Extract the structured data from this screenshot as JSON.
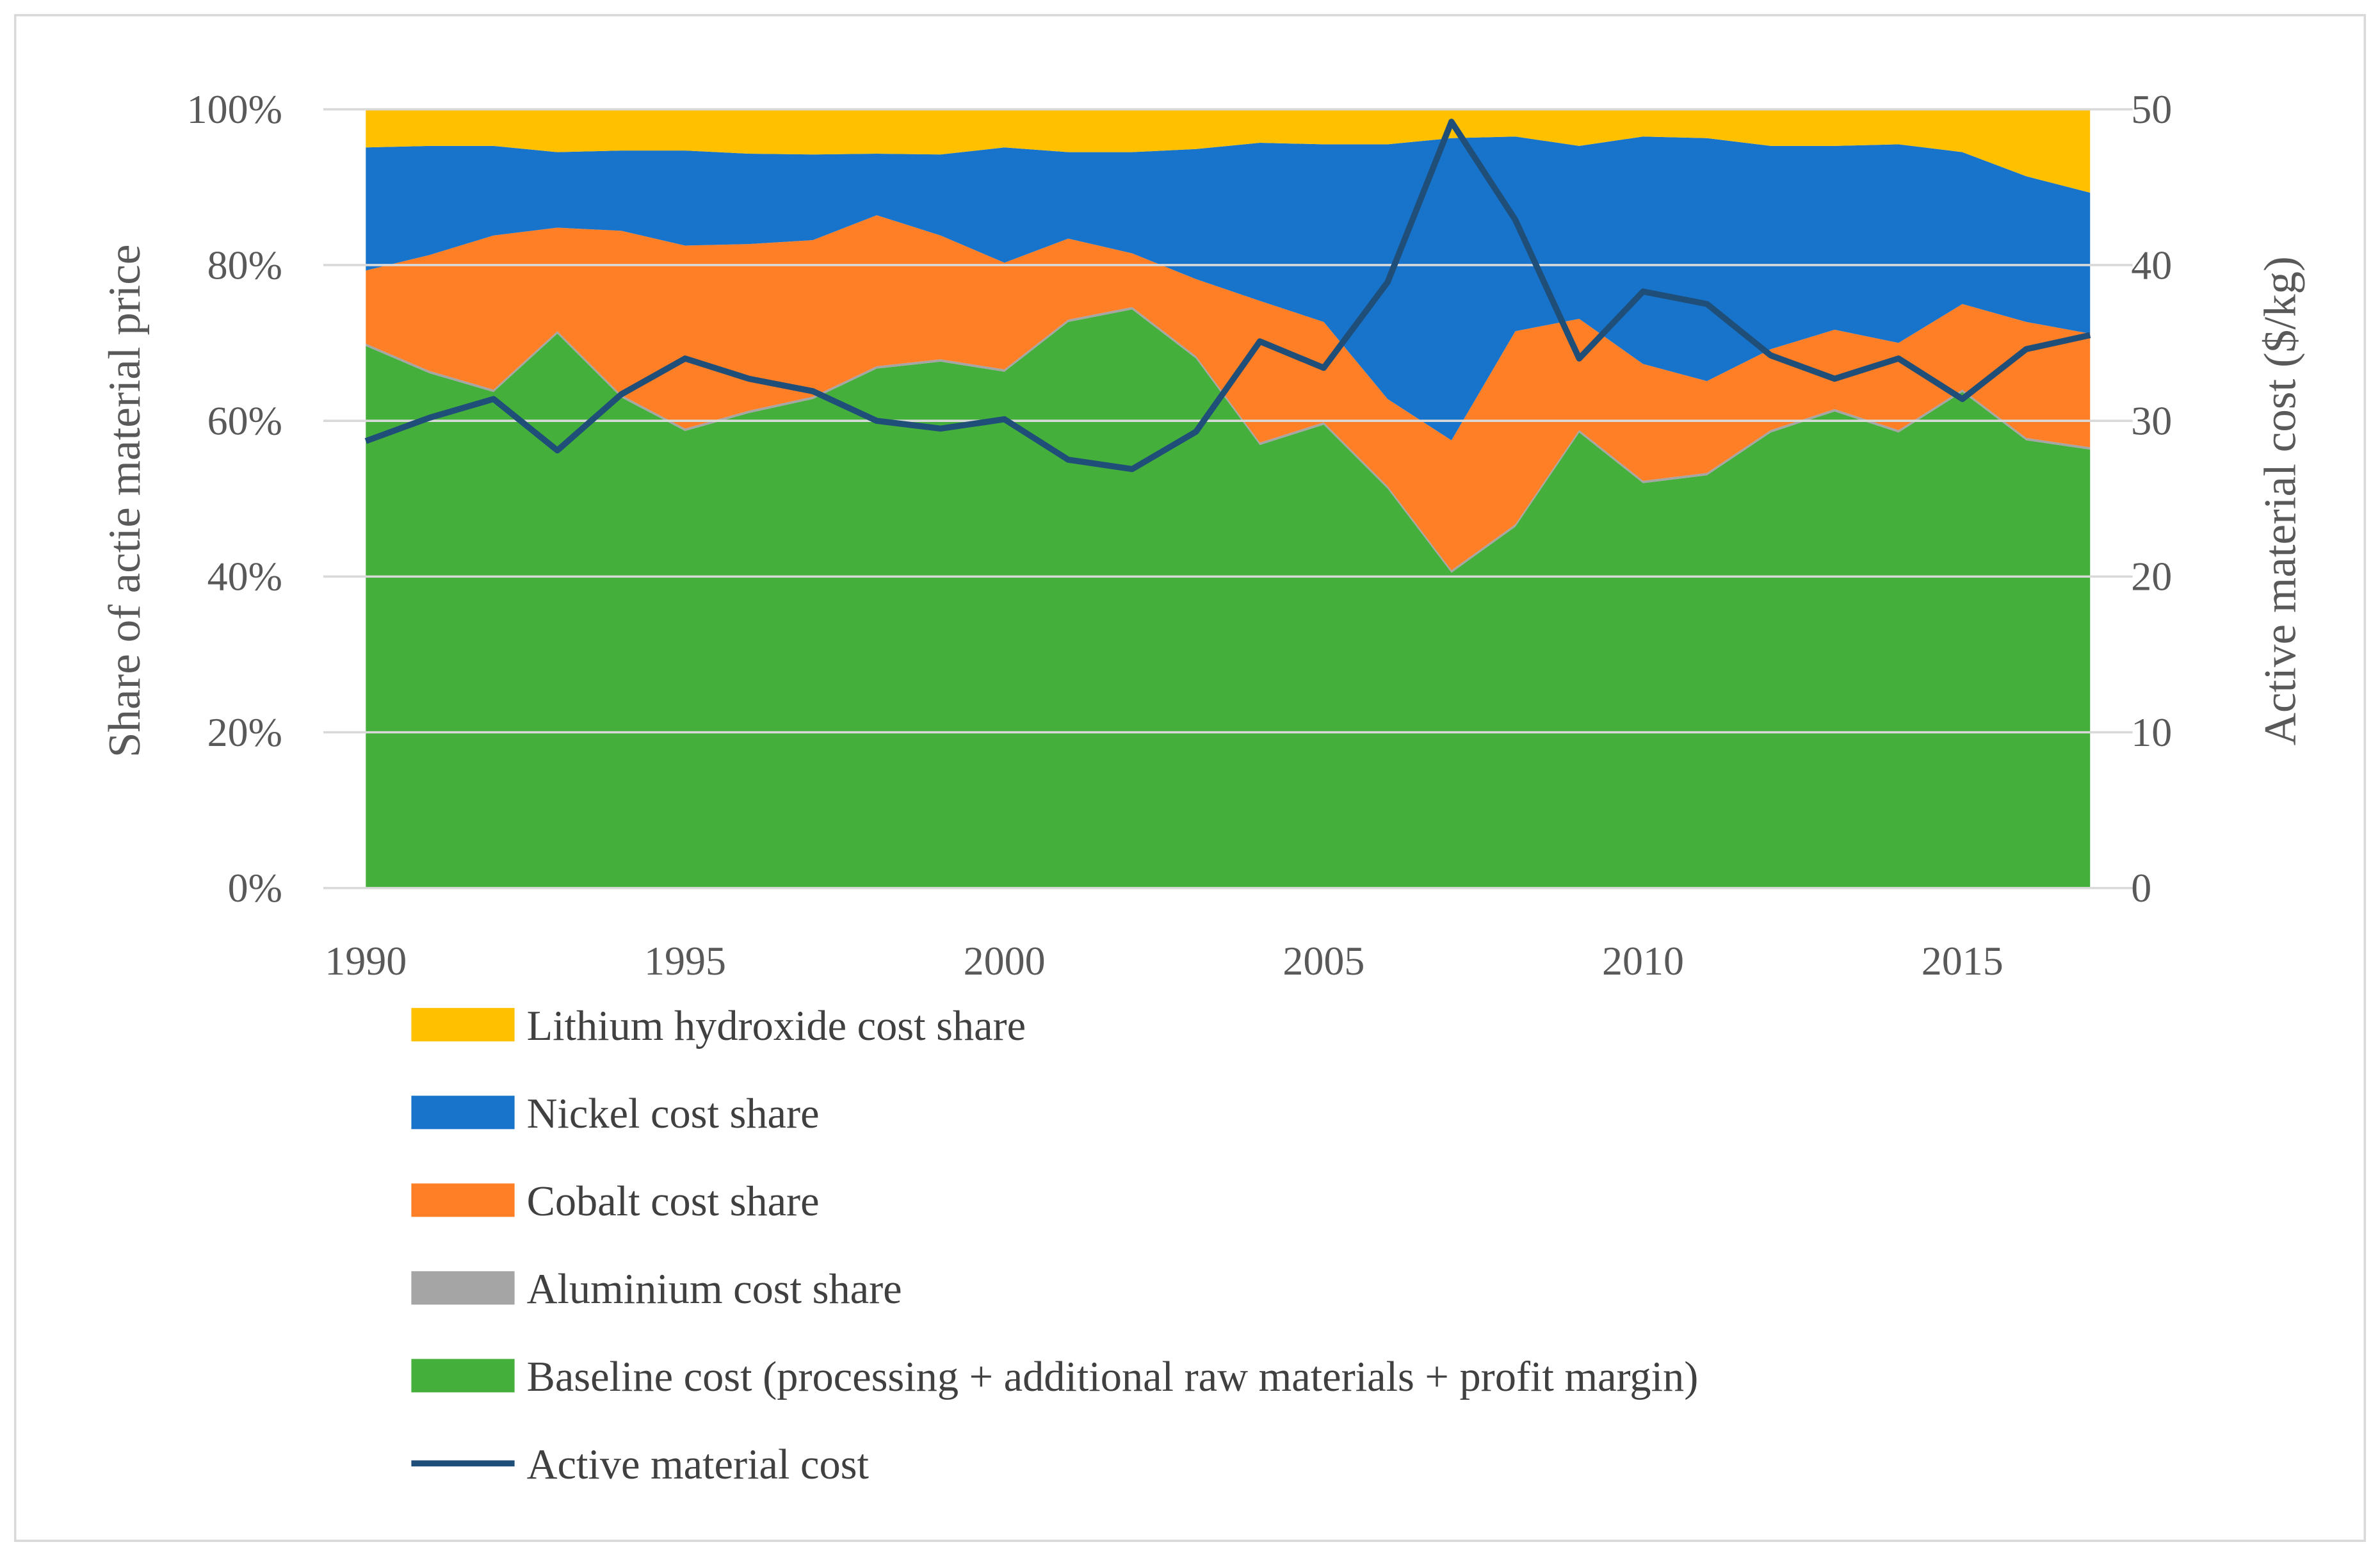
{
  "chart_data": {
    "type": "area",
    "subtype": "stacked-percent-area-with-secondary-line",
    "x": [
      1990,
      1991,
      1992,
      1993,
      1994,
      1995,
      1996,
      1997,
      1998,
      1999,
      2000,
      2001,
      2002,
      2003,
      2004,
      2005,
      2006,
      2007,
      2008,
      2009,
      2010,
      2011,
      2012,
      2013,
      2014,
      2015,
      2016,
      2017
    ],
    "x_ticks": [
      1990,
      1995,
      2000,
      2005,
      2010,
      2015
    ],
    "x_tick_labels": [
      "1990",
      "1995",
      "2000",
      "2005",
      "2010",
      "2015"
    ],
    "ylabel": "Share of actie material price",
    "ylim": [
      0,
      100
    ],
    "y_ticks": [
      0,
      20,
      40,
      60,
      80,
      100
    ],
    "y_tick_labels": [
      "0%",
      "20%",
      "40%",
      "60%",
      "80%",
      "100%"
    ],
    "y2label": "Active material cost ($/kg)",
    "y2lim": [
      0,
      50
    ],
    "y2_ticks": [
      0,
      10,
      20,
      30,
      40,
      50
    ],
    "y2_tick_labels": [
      "0",
      "10",
      "20",
      "30",
      "40",
      "50"
    ],
    "grid": true,
    "legend_position": "bottom",
    "series": [
      {
        "name": "Baseline cost (processing + additional raw materials + profit margin)",
        "type": "area",
        "color": "#45AF3B",
        "values": [
          69.6,
          66.1,
          63.7,
          71.2,
          63.0,
          58.7,
          61.0,
          62.8,
          66.7,
          67.6,
          66.3,
          72.7,
          74.3,
          68.0,
          56.9,
          59.5,
          51.3,
          40.5,
          46.4,
          58.5,
          52.0,
          53.0,
          58.5,
          61.2,
          58.5,
          63.7,
          57.5,
          56.3
        ]
      },
      {
        "name": "Aluminium cost share",
        "type": "area",
        "color": "#A5A5A5",
        "values": [
          0.3,
          0.3,
          0.3,
          0.3,
          0.3,
          0.3,
          0.3,
          0.3,
          0.3,
          0.3,
          0.3,
          0.3,
          0.3,
          0.3,
          0.3,
          0.3,
          0.3,
          0.3,
          0.3,
          0.3,
          0.3,
          0.3,
          0.3,
          0.3,
          0.3,
          0.3,
          0.3,
          0.3
        ]
      },
      {
        "name": "Cobalt cost share",
        "type": "area",
        "color": "#FF7F27",
        "values": [
          9.4,
          14.9,
          19.8,
          13.3,
          21.1,
          23.5,
          21.4,
          20.1,
          19.4,
          15.9,
          13.7,
          10.4,
          6.9,
          9.9,
          18.2,
          12.9,
          11.2,
          16.7,
          24.8,
          14.3,
          15.0,
          11.8,
          10.4,
          10.2,
          11.2,
          11.0,
          14.9,
          14.6
        ]
      },
      {
        "name": "Nickel cost share",
        "type": "area",
        "color": "#1874CB",
        "values": [
          15.8,
          14.0,
          11.5,
          9.7,
          10.3,
          12.2,
          11.6,
          11.0,
          7.9,
          10.4,
          14.8,
          11.1,
          13.0,
          16.7,
          20.3,
          22.8,
          32.7,
          38.8,
          25.0,
          22.2,
          29.2,
          31.2,
          26.1,
          23.6,
          25.5,
          19.5,
          18.7,
          18.1
        ]
      },
      {
        "name": "Lithium hydroxide cost share",
        "type": "area",
        "color": "#FFC000",
        "values": [
          4.9,
          4.7,
          4.7,
          5.5,
          5.3,
          5.3,
          5.7,
          5.8,
          5.7,
          5.8,
          4.9,
          5.5,
          5.5,
          5.1,
          4.3,
          4.5,
          4.5,
          3.7,
          3.5,
          4.7,
          3.5,
          3.7,
          4.7,
          4.7,
          4.5,
          5.5,
          8.6,
          10.7
        ]
      },
      {
        "name": "Active material cost",
        "type": "line",
        "axis": "right",
        "color": "#1F4E79",
        "values": [
          28.7,
          30.2,
          31.4,
          28.1,
          31.7,
          34.0,
          32.7,
          31.9,
          30.0,
          29.5,
          30.1,
          27.5,
          26.9,
          29.3,
          35.1,
          33.4,
          38.9,
          49.2,
          42.9,
          34.0,
          38.3,
          37.5,
          34.2,
          32.7,
          34.0,
          31.4,
          34.6,
          35.5
        ]
      }
    ],
    "legend": [
      {
        "label": "Lithium hydroxide cost share",
        "color": "#FFC000",
        "kind": "box"
      },
      {
        "label": "Nickel cost share",
        "color": "#1874CB",
        "kind": "box"
      },
      {
        "label": "Cobalt cost share",
        "color": "#FF7F27",
        "kind": "box"
      },
      {
        "label": "Aluminium cost share",
        "color": "#A5A5A5",
        "kind": "box"
      },
      {
        "label": "Baseline cost (processing + additional raw materials + profit margin)",
        "color": "#45AF3B",
        "kind": "box"
      },
      {
        "label": "Active material cost",
        "color": "#1F4E79",
        "kind": "line"
      }
    ]
  }
}
